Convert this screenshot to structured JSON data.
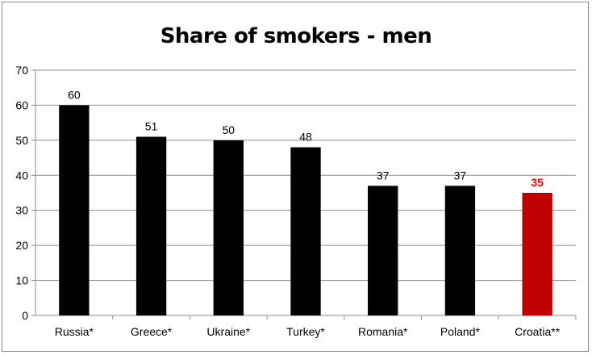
{
  "chart_data": {
    "type": "bar",
    "title": "Share of smokers - men",
    "categories": [
      "Russia*",
      "Greece*",
      "Ukraine*",
      "Turkey*",
      "Romania*",
      "Poland*",
      "Croatia**"
    ],
    "values": [
      60,
      51,
      50,
      48,
      37,
      37,
      35
    ],
    "bar_colors": [
      "#000000",
      "#000000",
      "#000000",
      "#000000",
      "#000000",
      "#000000",
      "#c00000"
    ],
    "label_colors": [
      "#000000",
      "#000000",
      "#000000",
      "#000000",
      "#000000",
      "#000000",
      "#ff0000"
    ],
    "ylim": [
      0,
      70
    ],
    "yticks": [
      0,
      10,
      20,
      30,
      40,
      50,
      60,
      70
    ],
    "xlabel": "",
    "ylabel": "",
    "grid": true,
    "legend": "none"
  }
}
